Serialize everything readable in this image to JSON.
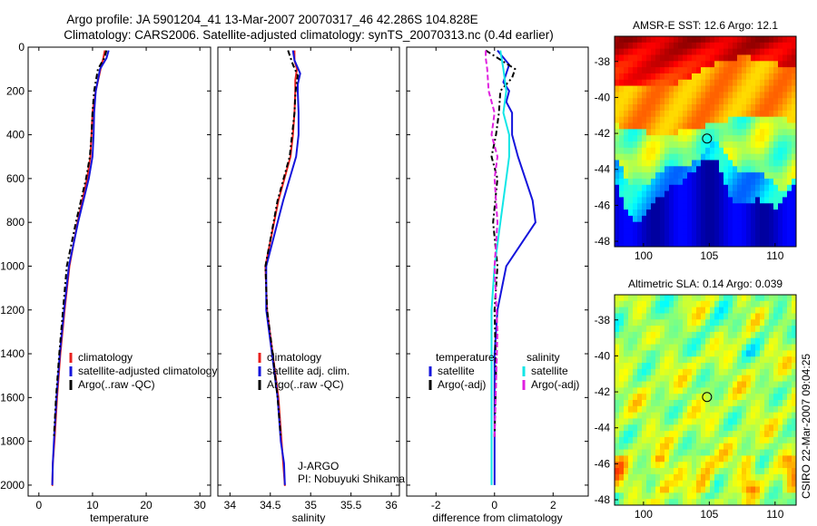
{
  "title_line1": "Argo profile: JA 5901204_41 13-Mar-2007 20070317_46 42.286S 104.828E",
  "title_line2": "Climatology: CARS2006. Satellite-adjusted climatology: synTS_20070313.nc (0.4d earlier)",
  "side_label": "CSIRO 22-Mar-2007 09:04:25",
  "colors": {
    "red": "#e8201e",
    "blue": "#1414dc",
    "black": "#000000",
    "cyan": "#12e6e6",
    "magenta": "#e020e0"
  },
  "chart_data": [
    {
      "type": "line",
      "id": "temperature",
      "xlabel": "temperature",
      "ylabel": "",
      "xlim": [
        -2,
        32
      ],
      "ylim": [
        2050,
        0
      ],
      "xticks": [
        0,
        10,
        20,
        30
      ],
      "yticks": [
        0,
        200,
        400,
        600,
        800,
        1000,
        1200,
        1400,
        1600,
        1800,
        2000
      ],
      "legend": {
        "placement": "bottom-right",
        "entries": [
          "climatology",
          "satellite-adjusted climatology",
          "Argo(..raw -QC)"
        ]
      },
      "series": [
        {
          "name": "climatology",
          "color": "red",
          "dash": "solid",
          "x": [
            12.3,
            12.0,
            11.5,
            10.6,
            10.0,
            9.8,
            9.6,
            9.0,
            7.2,
            5.7,
            4.8,
            4.0,
            3.4,
            2.9,
            2.6,
            2.5,
            2.4
          ],
          "y": [
            15,
            50,
            100,
            200,
            300,
            400,
            500,
            600,
            800,
            1000,
            1200,
            1400,
            1600,
            1800,
            1900,
            2000,
            2000
          ]
        },
        {
          "name": "satellite-adjusted climatology",
          "color": "blue",
          "dash": "solid",
          "x": [
            13.0,
            12.6,
            11.4,
            10.6,
            10.3,
            10.2,
            10.0,
            9.3,
            7.3,
            5.6,
            4.7,
            3.9,
            3.3,
            2.8,
            2.6,
            2.5
          ],
          "y": [
            15,
            50,
            100,
            200,
            300,
            400,
            500,
            600,
            800,
            1000,
            1200,
            1400,
            1600,
            1800,
            1900,
            2000
          ]
        },
        {
          "name": "Argo(..raw -QC)",
          "color": "black",
          "dash": "dashdot",
          "x": [
            12.6,
            12.2,
            11.0,
            10.3,
            10.0,
            9.8,
            9.5,
            8.8,
            6.9,
            5.2,
            4.5,
            3.8,
            3.2,
            2.8
          ],
          "y": [
            15,
            50,
            100,
            200,
            300,
            400,
            500,
            600,
            800,
            1000,
            1200,
            1400,
            1600,
            1780
          ]
        }
      ]
    },
    {
      "type": "line",
      "id": "salinity",
      "xlabel": "salinity",
      "ylabel": "",
      "xlim": [
        33.85,
        36.1
      ],
      "ylim": [
        2050,
        0
      ],
      "xticks": [
        34,
        34.5,
        35,
        35.5,
        36
      ],
      "yticks": [
        0,
        200,
        400,
        600,
        800,
        1000,
        1200,
        1400,
        1600,
        1800,
        2000
      ],
      "annotation": [
        "J-ARGO",
        "PI: Nobuyuki Shikama"
      ],
      "legend": {
        "placement": "bottom-right",
        "entries": [
          "climatology",
          "satellite adj. clim.",
          "Argo(..raw -QC)"
        ]
      },
      "series": [
        {
          "name": "climatology",
          "color": "red",
          "dash": "solid",
          "x": [
            34.8,
            34.8,
            34.83,
            34.81,
            34.81,
            34.8,
            34.78,
            34.75,
            34.6,
            34.44,
            34.46,
            34.53,
            34.6,
            34.64,
            34.66,
            34.68,
            34.69
          ],
          "y": [
            15,
            60,
            100,
            150,
            200,
            300,
            400,
            500,
            700,
            1000,
            1200,
            1400,
            1600,
            1800,
            1900,
            2000,
            2000
          ]
        },
        {
          "name": "satellite adj. clim.",
          "color": "blue",
          "dash": "solid",
          "x": [
            34.78,
            34.8,
            34.87,
            34.84,
            34.84,
            34.85,
            34.85,
            34.82,
            34.66,
            34.45,
            34.45,
            34.52,
            34.59,
            34.63,
            34.67,
            34.68
          ],
          "y": [
            15,
            60,
            120,
            170,
            200,
            300,
            400,
            500,
            700,
            1000,
            1200,
            1400,
            1600,
            1800,
            1900,
            2000
          ]
        },
        {
          "name": "Argo(..raw -QC)",
          "color": "black",
          "dash": "dashdot",
          "x": [
            34.72,
            34.78,
            34.84,
            34.82,
            34.81,
            34.8,
            34.77,
            34.74,
            34.59,
            34.44,
            34.46,
            34.53,
            34.59,
            34.63
          ],
          "y": [
            15,
            80,
            130,
            180,
            220,
            300,
            400,
            500,
            700,
            1000,
            1200,
            1400,
            1600,
            1780
          ]
        }
      ]
    },
    {
      "type": "line",
      "id": "difference",
      "xlabel": "difference from climatology",
      "ylabel": "",
      "xlim": [
        -3,
        3.2
      ],
      "ylim": [
        2050,
        0
      ],
      "xticks": [
        -2,
        0,
        2
      ],
      "yticks": [
        0,
        200,
        400,
        600,
        800,
        1000,
        1200,
        1400,
        1600,
        1800,
        2000
      ],
      "legend": {
        "placement": "bottom-right",
        "headers": [
          "temperature",
          "salinity"
        ],
        "entries": [
          "satellite",
          "Argo(-adj)",
          "satellite",
          "Argo(-adj)"
        ]
      },
      "series": [
        {
          "name": "satellite",
          "group": "temperature",
          "color": "blue",
          "dash": "solid",
          "x": [
            0.1,
            0.5,
            0.3,
            0.5,
            0.4,
            0.6,
            0.6,
            0.8,
            1.3,
            1.4,
            0.9,
            0.4,
            0.1,
            0.0,
            0.0,
            0.0
          ],
          "y": [
            15,
            80,
            160,
            200,
            250,
            300,
            400,
            500,
            700,
            800,
            900,
            1000,
            1200,
            1400,
            1700,
            2000
          ]
        },
        {
          "name": "Argo(-adj)",
          "group": "temperature",
          "color": "black",
          "dash": "dashdot",
          "x": [
            -0.3,
            0.7,
            0.6,
            0.2,
            0.15,
            0.05,
            -0.1,
            0.1,
            -0.05,
            0.1,
            0.0,
            0.05,
            0.0
          ],
          "y": [
            15,
            100,
            140,
            200,
            300,
            400,
            500,
            600,
            800,
            1000,
            1200,
            1500,
            1780
          ]
        },
        {
          "name": "satellite",
          "group": "salinity",
          "color": "cyan",
          "dash": "solid",
          "x": [
            0.2,
            0.3,
            0.4,
            0.3,
            0.5,
            0.5,
            0.4,
            0.2,
            0.0,
            -0.1,
            -0.1,
            -0.1,
            -0.1,
            -0.1,
            -0.1
          ],
          "y": [
            15,
            100,
            200,
            300,
            400,
            500,
            600,
            800,
            1000,
            1200,
            1400,
            1600,
            1800,
            1950,
            2000
          ]
        },
        {
          "name": "Argo(-adj)",
          "group": "salinity",
          "color": "magenta",
          "dash": "dashed",
          "x": [
            -0.3,
            -0.3,
            -0.25,
            -0.2,
            0.0,
            -0.1,
            0.1,
            0.0,
            0.1,
            0.0,
            0.1,
            0.0
          ],
          "y": [
            15,
            50,
            100,
            200,
            300,
            400,
            500,
            600,
            800,
            1000,
            1300,
            1780
          ]
        }
      ]
    },
    {
      "type": "heatmap",
      "id": "sst",
      "title": "AMSR-E SST: 12.6 Argo: 12.1",
      "xlim": [
        97.8,
        111.6
      ],
      "ylim": [
        -48.3,
        -36.6
      ],
      "xticks": [
        100,
        105,
        110
      ],
      "yticks": [
        -38,
        -40,
        -42,
        -44,
        -46,
        -48
      ],
      "marker": {
        "lon": 104.828,
        "lat": -42.286
      }
    },
    {
      "type": "heatmap",
      "id": "sla",
      "title": "Altimetric SLA: 0.14 Argo: 0.039",
      "xlim": [
        97.8,
        111.6
      ],
      "ylim": [
        -48.3,
        -36.6
      ],
      "xticks": [
        100,
        105,
        110
      ],
      "yticks": [
        -38,
        -40,
        -42,
        -44,
        -46,
        -48
      ],
      "marker": {
        "lon": 104.828,
        "lat": -42.286
      }
    }
  ]
}
